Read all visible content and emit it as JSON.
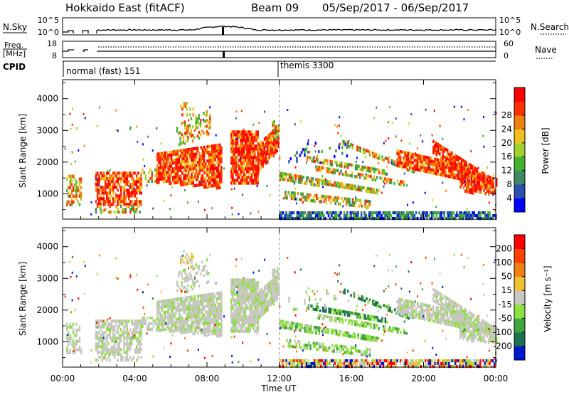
{
  "header": {
    "title": "Hokkaido East (fitACF)",
    "beam": "Beam 09",
    "date_range": "05/Sep/2017 - 06/Sep/2017"
  },
  "top_panels": {
    "nsky_label": "N.Sky",
    "nsky_ticks": [
      "10^5",
      "10^0"
    ],
    "nsearch_label": "N.Search",
    "nsearch_ticks": [
      "10^5",
      "10^0"
    ],
    "freq_label_line1": "Freq.",
    "freq_label_line2": "[MHz]",
    "freq_ticks": [
      "18",
      "8"
    ],
    "nave_label": "Nave",
    "nave_ticks": [
      "60",
      "0"
    ],
    "cpid_label": "CPID",
    "cpid_segments": [
      {
        "label": "normal (fast) 151",
        "start_hour": 0
      },
      {
        "label": "themis 3300",
        "start_hour": 12
      }
    ]
  },
  "chart_data": [
    {
      "type": "heatmap",
      "name": "power",
      "ylabel": "Slant Range [km]",
      "y_ticks": [
        "1000",
        "2000",
        "3000",
        "4000"
      ],
      "ylim": [
        200,
        4600
      ],
      "xlim": [
        0,
        24
      ],
      "colorbar": {
        "label": "Power [dB]",
        "ticks": [
          "4",
          "8",
          "12",
          "16",
          "20",
          "24",
          "28"
        ],
        "colors": [
          "#0000ff",
          "#2a4fb0",
          "#3d8a66",
          "#44b030",
          "#9fd030",
          "#f0c020",
          "#f08010",
          "#ff3000",
          "#ff0000"
        ]
      }
    },
    {
      "type": "heatmap",
      "name": "velocity",
      "ylabel": "Slant Range [km]",
      "y_ticks": [
        "1000",
        "2000",
        "3000",
        "4000"
      ],
      "ylim": [
        200,
        4600
      ],
      "xlim": [
        0,
        24
      ],
      "colorbar": {
        "label": "Velocity [m s⁻¹]",
        "ticks": [
          "200",
          "100",
          "50",
          "15",
          "-15",
          "-50",
          "-100",
          "-200"
        ],
        "colors": [
          "#0018d0",
          "#1e7050",
          "#3fa540",
          "#8ce040",
          "#c8c8c0",
          "#f0c030",
          "#f08010",
          "#ff4000",
          "#ff0000"
        ]
      }
    }
  ],
  "x_axis": {
    "ticks": [
      "00:00",
      "04:00",
      "08:00",
      "12:00",
      "16:00",
      "20:00",
      "00:00"
    ],
    "label": "Time UT"
  }
}
